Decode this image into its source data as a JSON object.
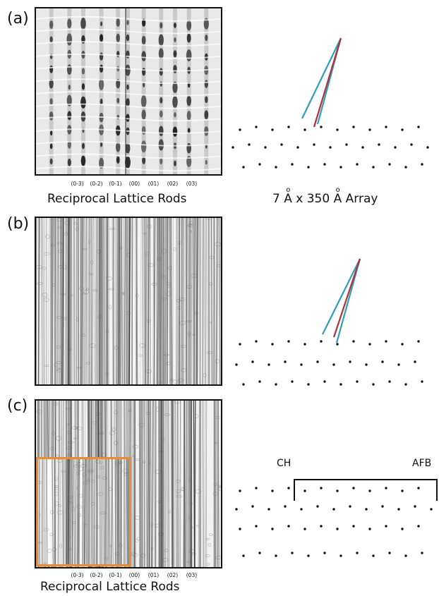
{
  "panels": [
    {
      "letter": "(a)"
    },
    {
      "letter": "(b)"
    },
    {
      "letter": "(c)"
    }
  ],
  "rod_labels": [
    "(0-3)",
    "(0-2)",
    "(0-1)",
    "(00)",
    "(01)",
    "(02)",
    "(03)"
  ],
  "captions": {
    "top_left": "Reciprocal Lattice Rods",
    "bottom_left": "Reciprocal Lattice Rods",
    "array_prefix": "7 ",
    "array_unit1": "A",
    "array_mid": " x 350 ",
    "array_unit2": "A",
    "array_suffix": "  Array"
  },
  "markers": {
    "left": "CH",
    "right": "AFB"
  },
  "colors": {
    "frame": "#111111",
    "inset_border": "#f08a2e",
    "ray_blue": "#2e9fb8",
    "ray_red": "#b0303a",
    "dots": "#111111"
  }
}
